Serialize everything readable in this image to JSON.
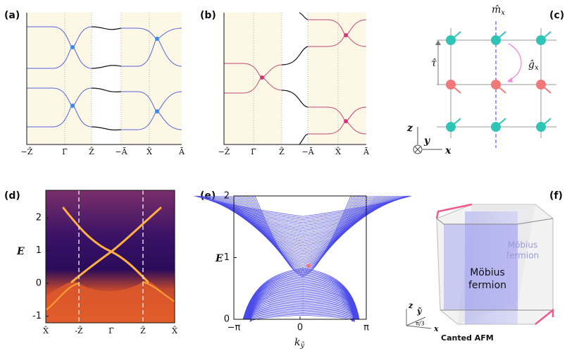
{
  "panels": {
    "a": {
      "label": "(a)",
      "kpoints": [
        "−Z̄",
        "Γ̄",
        "Z̄",
        "−Ā",
        "X̄",
        "Ā"
      ]
    },
    "b": {
      "label": "(b)",
      "kpoints": [
        "−Z̄",
        "Γ̄",
        "Z̄",
        "−Ā",
        "X̄",
        "Ā"
      ]
    },
    "c": {
      "label": "(c)",
      "mirror": "m̂",
      "mirror_sub": "x",
      "translation": "τ̂",
      "glide": "ĝ",
      "glide_sub": "x",
      "axes": [
        "z",
        "y",
        "x"
      ]
    },
    "d": {
      "label": "(d)",
      "ylabel": "E",
      "ylim": [
        -1.2,
        2.84
      ],
      "yticks": [
        -1,
        0,
        1,
        2
      ],
      "kpoints": [
        "X̄",
        "-Z̄",
        "Γ̄",
        "Z̄",
        "X̄"
      ]
    },
    "e": {
      "label": "(e)",
      "ylabel": "E",
      "xlabel": "k",
      "xlabel_sub": "ỹ",
      "ylim": [
        0,
        2
      ],
      "yticks": [
        0,
        1,
        2
      ],
      "xlim": [
        -3.14159,
        3.14159
      ],
      "xticks": [
        {
          "value": -3.14159,
          "label": "−π"
        },
        0,
        {
          "value": 3.14159,
          "label": "π"
        }
      ]
    },
    "f": {
      "label": "(f)",
      "back_text": [
        "Möbius",
        "fermion"
      ],
      "front_text": [
        "Möbius",
        "fermion"
      ],
      "axes": [
        "z",
        "ỹ",
        "x"
      ],
      "angle": "π/3",
      "caption": "Canted AFM"
    }
  }
}
